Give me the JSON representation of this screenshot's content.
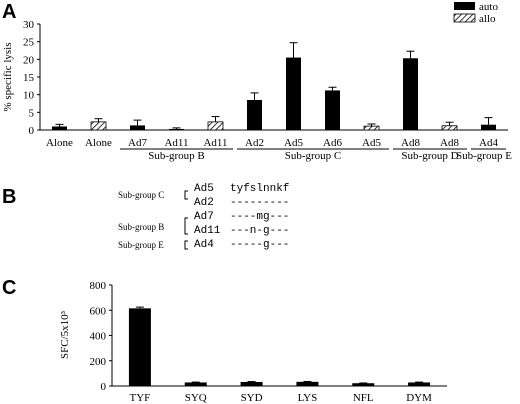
{
  "panel_labels": {
    "a": "A",
    "b": "B",
    "c": "C"
  },
  "legend": {
    "auto": "auto",
    "allo": "allo"
  },
  "colors": {
    "bar": "#000000",
    "axis": "#000000"
  },
  "chart_data": [
    {
      "type": "bar",
      "panel": "A",
      "title": "",
      "ylabel": "% specific lysis",
      "ylim": [
        0,
        30
      ],
      "yticks": [
        0,
        5,
        10,
        15,
        20,
        25,
        30
      ],
      "grid": false,
      "legend_position": "top-right",
      "series_keys": [
        "auto",
        "allo"
      ],
      "categories": [
        "Alone",
        "Alone",
        "Ad7",
        "Ad11",
        "Ad11",
        "Ad2",
        "Ad5",
        "Ad6",
        "Ad5",
        "Ad8",
        "Ad8",
        "Ad4"
      ],
      "series_index": [
        0,
        1,
        0,
        0,
        1,
        0,
        0,
        0,
        1,
        0,
        1,
        0
      ],
      "values": [
        1.0,
        2.3,
        1.3,
        0.3,
        2.3,
        8.5,
        20.5,
        11.2,
        1.1,
        20.3,
        1.2,
        1.5
      ],
      "errors": [
        0.6,
        0.9,
        1.5,
        0.3,
        1.5,
        2.0,
        4.2,
        0.9,
        0.6,
        2.0,
        1.0,
        2.0
      ],
      "groups": [
        {
          "label": "Sub-group B",
          "from": 2,
          "to": 4
        },
        {
          "label": "Sub-group C",
          "from": 5,
          "to": 8
        },
        {
          "label": "Sub-group D",
          "from": 9,
          "to": 10
        },
        {
          "label": "Sub-group E",
          "from": 11,
          "to": 11
        }
      ]
    },
    {
      "type": "bar",
      "panel": "C",
      "title": "",
      "ylabel": "SFC/5x10³",
      "ylim": [
        0,
        800
      ],
      "yticks": [
        0,
        200,
        400,
        600,
        800
      ],
      "grid": false,
      "categories": [
        "TYF",
        "SYQ",
        "SYD",
        "LYS",
        "NFL",
        "DYM"
      ],
      "values": [
        615,
        28,
        32,
        33,
        22,
        28
      ],
      "errors": [
        10,
        3,
        3,
        3,
        2,
        3
      ]
    }
  ],
  "alignment": {
    "rows": [
      {
        "group": "Sub-group C",
        "name": "Ad5",
        "seq": "tyfslnnkf"
      },
      {
        "group": "",
        "name": "Ad2",
        "seq": "---------"
      },
      {
        "group": "",
        "name": "Ad7",
        "seq": "----mg---"
      },
      {
        "group": "Sub-group B",
        "name": "Ad11",
        "seq": "---n-g---"
      },
      {
        "group": "Sub-group E",
        "name": "Ad4",
        "seq": "-----g---"
      }
    ]
  }
}
